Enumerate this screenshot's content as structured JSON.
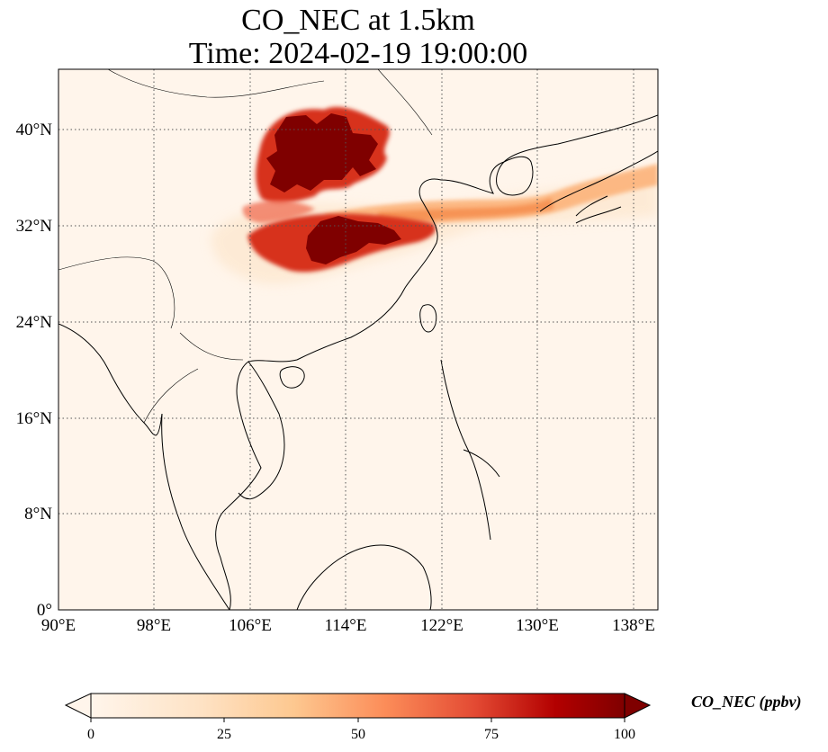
{
  "title": {
    "line1": "CO_NEC at 1.5km",
    "line2": "Time: 2024-02-19 19:00:00"
  },
  "map": {
    "lon_range": [
      90,
      140
    ],
    "lat_range": [
      0,
      45
    ],
    "lon_ticks": [
      "90°E",
      "98°E",
      "106°E",
      "114°E",
      "122°E",
      "130°E",
      "138°E"
    ],
    "lat_ticks": [
      "0°",
      "8°N",
      "16°N",
      "24°N",
      "32°N",
      "40°N"
    ],
    "gridlines": "dotted",
    "background_color": "#fff5eb",
    "high_concentration_regions": [
      "North China Plain (approx. 108–117°E, 35–41°N)",
      "Sichuan–Hubei region (approx. 105–117°E, 29–34°N)",
      "Plume over Yellow Sea to Japan (approx. 117–140°E, 32–38°N)"
    ]
  },
  "colorbar": {
    "label": "CO_NEC (ppbv)",
    "ticks": [
      "0",
      "25",
      "50",
      "75",
      "100"
    ],
    "min": 0,
    "max": 100,
    "colormap": "OrRd",
    "extend": "both",
    "colors": [
      "#fff5eb",
      "#fdd5a8",
      "#fd9f62",
      "#e5502a",
      "#a30704",
      "#7f0000"
    ]
  }
}
